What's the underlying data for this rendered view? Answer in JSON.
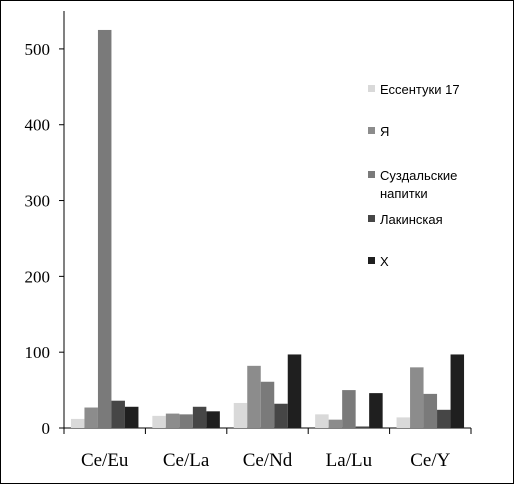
{
  "chart_data": {
    "type": "bar",
    "title": "",
    "xlabel": "",
    "ylabel": "",
    "categories": [
      "Ce/Eu",
      "Ce/La",
      "Ce/Nd",
      "La/Lu",
      "Ce/Y"
    ],
    "ylim": [
      0,
      550
    ],
    "yticks": [
      0,
      100,
      200,
      300,
      400,
      500
    ],
    "grid": false,
    "legend_position": "right",
    "series": [
      {
        "name": "Ессентуки 17",
        "color": "#d9d9d9",
        "values": [
          12,
          16,
          33,
          18,
          14
        ]
      },
      {
        "name": "Я",
        "color": "#8c8c8c",
        "values": [
          27,
          19,
          82,
          11,
          80
        ]
      },
      {
        "name": "Суздальские напитки",
        "color": "#7a7a7a",
        "values": [
          525,
          18,
          61,
          50,
          45
        ]
      },
      {
        "name": "Лакинская",
        "color": "#464646",
        "values": [
          36,
          28,
          32,
          2,
          24
        ]
      },
      {
        "name": "X",
        "color": "#1f1f1f",
        "values": [
          28,
          22,
          97,
          46,
          97
        ]
      }
    ]
  }
}
